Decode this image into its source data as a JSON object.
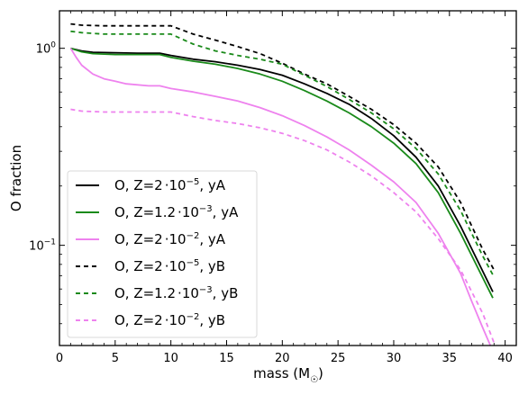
{
  "chart_data": {
    "type": "line",
    "xlabel": "mass (M",
    "xlabel_sub": "☉",
    "xlabel_close": ")",
    "ylabel": "O fraction",
    "xlim": [
      0,
      41
    ],
    "ylim": [
      0.031,
      1.55
    ],
    "yscale": "log",
    "xticks": [
      0,
      5,
      10,
      15,
      20,
      25,
      30,
      35,
      40
    ],
    "xtick_labels": [
      "0",
      "5",
      "10",
      "15",
      "20",
      "25",
      "30",
      "35",
      "40"
    ],
    "yticks": [
      0.1,
      1
    ],
    "ytick_labels_mant": [
      "10",
      "10"
    ],
    "ytick_labels_exp": [
      "−1",
      "0"
    ],
    "legend_placement": "lower-left",
    "series": [
      {
        "name": "O, Z=2·10⁻⁵, yA",
        "label_main": "O, Z=2",
        "label_factor": "10",
        "label_exp": "−5",
        "label_suffix": ", yA",
        "color": "#000000",
        "dash": "solid",
        "x": [
          1,
          2,
          3,
          5,
          7,
          9,
          10,
          12,
          14,
          16,
          18,
          20,
          22,
          24,
          26,
          28,
          30,
          32,
          34,
          36,
          38.9
        ],
        "y": [
          1.0,
          0.97,
          0.955,
          0.95,
          0.945,
          0.945,
          0.92,
          0.88,
          0.855,
          0.82,
          0.78,
          0.73,
          0.66,
          0.59,
          0.52,
          0.44,
          0.36,
          0.28,
          0.2,
          0.125,
          0.058
        ]
      },
      {
        "name": "O, Z=1.2·10⁻³, yA",
        "label_main": "O, Z=1.2",
        "label_factor": "10",
        "label_exp": "−3",
        "label_suffix": ", yA",
        "color": "#1a8a1a",
        "dash": "solid",
        "x": [
          1,
          2,
          3,
          5,
          7,
          9,
          10,
          12,
          14,
          16,
          18,
          20,
          22,
          24,
          26,
          28,
          30,
          32,
          34,
          36,
          38.9
        ],
        "y": [
          1.0,
          0.96,
          0.94,
          0.93,
          0.93,
          0.93,
          0.9,
          0.86,
          0.83,
          0.79,
          0.74,
          0.68,
          0.61,
          0.54,
          0.47,
          0.4,
          0.33,
          0.26,
          0.185,
          0.115,
          0.054
        ]
      },
      {
        "name": "O, Z=2·10⁻², yA",
        "label_main": "O, Z=2",
        "label_factor": "10",
        "label_exp": "−2",
        "label_suffix": ", yA",
        "color": "#ee82ee",
        "dash": "solid",
        "x": [
          1,
          1.5,
          2,
          3,
          4,
          5,
          6,
          8,
          9,
          10,
          12,
          14,
          16,
          18,
          20,
          22,
          24,
          26,
          28,
          30,
          32,
          34,
          36,
          37,
          38,
          38.9
        ],
        "y": [
          1.0,
          0.9,
          0.82,
          0.74,
          0.7,
          0.68,
          0.66,
          0.645,
          0.645,
          0.625,
          0.6,
          0.57,
          0.54,
          0.5,
          0.455,
          0.405,
          0.355,
          0.305,
          0.255,
          0.21,
          0.165,
          0.115,
          0.072,
          0.052,
          0.038,
          0.029
        ]
      },
      {
        "name": "O, Z=2·10⁻⁵, yB",
        "label_main": "O, Z=2",
        "label_factor": "10",
        "label_exp": "−5",
        "label_suffix": ", yB",
        "color": "#000000",
        "dash": "dashed",
        "x": [
          1,
          2,
          4,
          6,
          8,
          10,
          12,
          14,
          16,
          18,
          20,
          22,
          24,
          26,
          28,
          30,
          32,
          34,
          36,
          38,
          39
        ],
        "y": [
          1.33,
          1.31,
          1.3,
          1.3,
          1.3,
          1.3,
          1.18,
          1.1,
          1.02,
          0.94,
          0.84,
          0.74,
          0.66,
          0.57,
          0.49,
          0.41,
          0.33,
          0.25,
          0.165,
          0.095,
          0.075
        ]
      },
      {
        "name": "O, Z=1.2·10⁻³, yB",
        "label_main": "O, Z=1.2",
        "label_factor": "10",
        "label_exp": "−3",
        "label_suffix": ", yB",
        "color": "#1a8a1a",
        "dash": "dashed",
        "x": [
          1,
          2,
          4,
          6,
          8,
          10,
          12,
          14,
          16,
          18,
          20,
          22,
          24,
          26,
          28,
          30,
          32,
          34,
          36,
          38,
          39
        ],
        "y": [
          1.22,
          1.2,
          1.18,
          1.18,
          1.18,
          1.18,
          1.05,
          0.97,
          0.92,
          0.88,
          0.83,
          0.73,
          0.64,
          0.55,
          0.47,
          0.39,
          0.31,
          0.23,
          0.15,
          0.088,
          0.069
        ]
      },
      {
        "name": "O, Z=2·10⁻², yB",
        "label_main": "O, Z=2",
        "label_factor": "10",
        "label_exp": "−2",
        "label_suffix": ", yB",
        "color": "#ee82ee",
        "dash": "dashed",
        "x": [
          1,
          2,
          4,
          6,
          8,
          10,
          12,
          14,
          16,
          18,
          20,
          22,
          24,
          26,
          28,
          30,
          32,
          34,
          36,
          38,
          39
        ],
        "y": [
          0.49,
          0.48,
          0.475,
          0.475,
          0.475,
          0.475,
          0.45,
          0.43,
          0.415,
          0.395,
          0.37,
          0.34,
          0.305,
          0.265,
          0.225,
          0.185,
          0.148,
          0.108,
          0.075,
          0.045,
          0.032
        ]
      }
    ]
  }
}
